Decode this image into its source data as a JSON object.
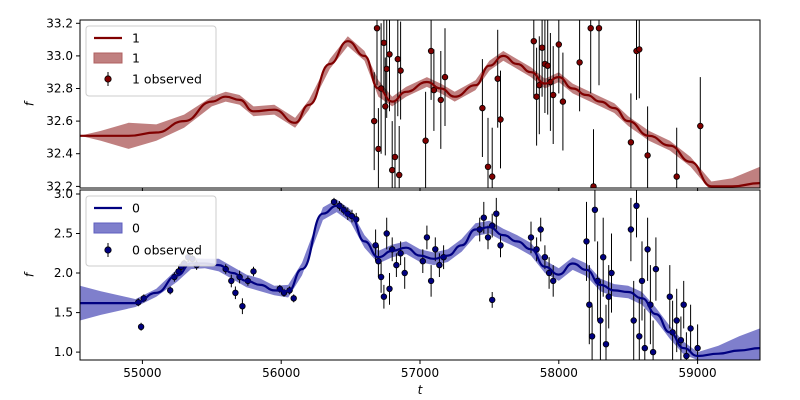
{
  "chart_data": [
    {
      "type": "line",
      "panel": "top",
      "xlabel": "",
      "ylabel": "f",
      "xlim": [
        54550,
        59450
      ],
      "ylim": [
        32.19,
        33.22
      ],
      "yticks": [
        32.2,
        32.4,
        32.6,
        32.8,
        33.0,
        33.2
      ],
      "ytick_labels": [
        "32.2",
        "32.4",
        "32.6",
        "32.8",
        "33.0",
        "33.2"
      ],
      "show_xtick_labels": false,
      "colors": {
        "line": "#800000",
        "band": "#b06060",
        "marker": "#800000"
      },
      "legend": {
        "position": "top-left",
        "entries": [
          {
            "kind": "line",
            "label": "1"
          },
          {
            "kind": "band",
            "label": "1"
          },
          {
            "kind": "errorbar",
            "label": "1 observed"
          }
        ]
      },
      "series": [
        {
          "name": "1",
          "kind": "model",
          "x": [
            54550,
            54700,
            54900,
            55100,
            55300,
            55500,
            55600,
            55700,
            55800,
            55950,
            56100,
            56200,
            56350,
            56480,
            56600,
            56700,
            56800,
            56900,
            57050,
            57150,
            57250,
            57400,
            57500,
            57600,
            57700,
            57800,
            57900,
            58000,
            58100,
            58200,
            58300,
            58400,
            58500,
            58650,
            58800,
            58950,
            59100,
            59250,
            59450
          ],
          "y": [
            32.51,
            32.51,
            32.51,
            32.53,
            32.6,
            32.72,
            32.75,
            32.73,
            32.66,
            32.67,
            32.59,
            32.7,
            32.95,
            33.09,
            33.0,
            32.8,
            32.72,
            32.78,
            32.84,
            32.8,
            32.75,
            32.82,
            32.94,
            33.0,
            32.95,
            32.9,
            32.83,
            32.87,
            32.8,
            32.76,
            32.72,
            32.68,
            32.6,
            32.51,
            32.45,
            32.35,
            32.2,
            32.2,
            32.22
          ],
          "band_halfwidth": [
            0.0,
            0.03,
            0.08,
            0.05,
            0.04,
            0.03,
            0.03,
            0.03,
            0.03,
            0.03,
            0.03,
            0.03,
            0.03,
            0.03,
            0.03,
            0.05,
            0.03,
            0.03,
            0.03,
            0.03,
            0.03,
            0.03,
            0.03,
            0.03,
            0.03,
            0.03,
            0.03,
            0.03,
            0.03,
            0.03,
            0.03,
            0.03,
            0.03,
            0.03,
            0.03,
            0.03,
            0.03,
            0.05,
            0.1
          ]
        },
        {
          "name": "1 observed",
          "kind": "observed",
          "points": [
            [
              56670,
              32.6,
              0.3
            ],
            [
              56690,
              33.17,
              0.35
            ],
            [
              56700,
              32.43,
              0.25
            ],
            [
              56720,
              32.8,
              0.4
            ],
            [
              56740,
              33.08,
              0.3
            ],
            [
              56750,
              32.69,
              0.3
            ],
            [
              56760,
              32.92,
              0.3
            ],
            [
              56780,
              33.01,
              0.35
            ],
            [
              56800,
              32.3,
              0.3
            ],
            [
              56820,
              32.38,
              0.35
            ],
            [
              56840,
              32.98,
              0.35
            ],
            [
              56860,
              32.91,
              0.3
            ],
            [
              56850,
              32.27,
              0.3
            ],
            [
              57040,
              32.48,
              0.3
            ],
            [
              57080,
              33.03,
              0.3
            ],
            [
              57100,
              32.79,
              0.25
            ],
            [
              57150,
              32.73,
              0.3
            ],
            [
              57180,
              32.87,
              0.3
            ],
            [
              57450,
              32.68,
              0.3
            ],
            [
              57490,
              32.32,
              0.3
            ],
            [
              57520,
              32.26,
              0.3
            ],
            [
              57560,
              32.86,
              0.3
            ],
            [
              57580,
              32.61,
              0.3
            ],
            [
              57820,
              33.09,
              0.35
            ],
            [
              57840,
              32.75,
              0.3
            ],
            [
              57860,
              32.82,
              0.3
            ],
            [
              57880,
              33.05,
              0.3
            ],
            [
              57900,
              32.95,
              0.3
            ],
            [
              57920,
              32.94,
              0.3
            ],
            [
              57940,
              32.84,
              0.3
            ],
            [
              57960,
              32.76,
              0.3
            ],
            [
              58000,
              33.07,
              0.3
            ],
            [
              58030,
              32.72,
              0.3
            ],
            [
              58150,
              32.96,
              0.3
            ],
            [
              58230,
              33.17,
              0.4
            ],
            [
              58250,
              32.2,
              0.35
            ],
            [
              58290,
              33.17,
              0.35
            ],
            [
              58520,
              32.47,
              0.3
            ],
            [
              58560,
              33.03,
              0.3
            ],
            [
              58580,
              33.04,
              0.3
            ],
            [
              58640,
              32.39,
              0.3
            ],
            [
              58850,
              32.26,
              0.3
            ],
            [
              59020,
              32.57,
              0.3
            ]
          ]
        }
      ]
    },
    {
      "type": "line",
      "panel": "bottom",
      "xlabel": "t",
      "ylabel": "f",
      "xlim": [
        54550,
        59450
      ],
      "ylim": [
        0.9,
        3.05
      ],
      "xticks": [
        55000,
        56000,
        57000,
        58000,
        59000
      ],
      "xtick_labels": [
        "55000",
        "56000",
        "57000",
        "58000",
        "59000"
      ],
      "yticks": [
        1.0,
        1.5,
        2.0,
        2.5,
        3.0
      ],
      "ytick_labels": [
        "1.0",
        "1.5",
        "2.0",
        "2.5",
        "3.0"
      ],
      "colors": {
        "line": "#000080",
        "band": "#5f5fbf",
        "marker": "#000080"
      },
      "legend": {
        "position": "top-left",
        "entries": [
          {
            "kind": "line",
            "label": "0"
          },
          {
            "kind": "band",
            "label": "0"
          },
          {
            "kind": "errorbar",
            "label": "0 observed"
          }
        ]
      },
      "series": [
        {
          "name": "0",
          "kind": "model",
          "x": [
            54550,
            54700,
            54950,
            55100,
            55250,
            55350,
            55450,
            55550,
            55650,
            55750,
            55850,
            55950,
            56050,
            56150,
            56300,
            56400,
            56500,
            56600,
            56700,
            56800,
            56900,
            57000,
            57100,
            57200,
            57300,
            57400,
            57500,
            57600,
            57700,
            57800,
            57900,
            58000,
            58100,
            58200,
            58300,
            58400,
            58500,
            58600,
            58700,
            58800,
            58900,
            59000,
            59150,
            59300,
            59450
          ],
          "y": [
            1.62,
            1.62,
            1.62,
            1.75,
            1.97,
            2.12,
            2.12,
            2.1,
            2.0,
            1.9,
            1.85,
            1.78,
            1.77,
            2.05,
            2.75,
            2.85,
            2.72,
            2.4,
            2.2,
            2.28,
            2.32,
            2.22,
            2.18,
            2.22,
            2.35,
            2.55,
            2.58,
            2.48,
            2.4,
            2.3,
            2.08,
            1.98,
            2.12,
            2.04,
            1.85,
            1.78,
            1.76,
            1.68,
            1.48,
            1.25,
            1.05,
            0.95,
            0.98,
            1.02,
            1.05
          ],
          "band_halfwidth": [
            0.22,
            0.15,
            0.05,
            0.05,
            0.08,
            0.07,
            0.06,
            0.08,
            0.08,
            0.08,
            0.08,
            0.06,
            0.08,
            0.08,
            0.08,
            0.08,
            0.08,
            0.08,
            0.08,
            0.08,
            0.08,
            0.08,
            0.08,
            0.08,
            0.08,
            0.08,
            0.08,
            0.08,
            0.08,
            0.08,
            0.08,
            0.08,
            0.08,
            0.08,
            0.08,
            0.08,
            0.08,
            0.08,
            0.08,
            0.08,
            0.08,
            0.05,
            0.1,
            0.18,
            0.25
          ]
        },
        {
          "name": "0 observed",
          "kind": "observed",
          "points": [
            [
              54970,
              1.63,
              0.05
            ],
            [
              54990,
              1.32,
              0.05
            ],
            [
              55010,
              1.68,
              0.05
            ],
            [
              55200,
              1.78,
              0.05
            ],
            [
              55230,
              1.95,
              0.06
            ],
            [
              55260,
              2.02,
              0.06
            ],
            [
              55280,
              2.08,
              0.05
            ],
            [
              55300,
              2.12,
              0.05
            ],
            [
              55330,
              2.2,
              0.06
            ],
            [
              55360,
              2.18,
              0.05
            ],
            [
              55390,
              2.1,
              0.06
            ],
            [
              55600,
              2.05,
              0.06
            ],
            [
              55640,
              1.9,
              0.08
            ],
            [
              55670,
              1.75,
              0.08
            ],
            [
              55700,
              1.95,
              0.08
            ],
            [
              55720,
              1.58,
              0.1
            ],
            [
              55760,
              1.9,
              0.06
            ],
            [
              55800,
              2.02,
              0.06
            ],
            [
              55990,
              1.8,
              0.05
            ],
            [
              56020,
              1.75,
              0.05
            ],
            [
              56060,
              1.78,
              0.05
            ],
            [
              56090,
              1.68,
              0.05
            ],
            [
              56380,
              2.9,
              0.05
            ],
            [
              56420,
              2.85,
              0.06
            ],
            [
              56450,
              2.8,
              0.06
            ],
            [
              56480,
              2.75,
              0.08
            ],
            [
              56510,
              2.72,
              0.08
            ],
            [
              56540,
              2.68,
              0.08
            ],
            [
              56680,
              2.35,
              0.2
            ],
            [
              56700,
              2.15,
              0.2
            ],
            [
              56720,
              1.95,
              0.2
            ],
            [
              56740,
              1.7,
              0.15
            ],
            [
              56760,
              2.5,
              0.2
            ],
            [
              56780,
              1.8,
              0.2
            ],
            [
              56800,
              2.3,
              0.15
            ],
            [
              56830,
              2.1,
              0.15
            ],
            [
              56860,
              2.25,
              0.15
            ],
            [
              56890,
              2.0,
              0.2
            ],
            [
              57020,
              2.15,
              0.15
            ],
            [
              57050,
              2.45,
              0.15
            ],
            [
              57080,
              1.9,
              0.2
            ],
            [
              57110,
              2.3,
              0.15
            ],
            [
              57140,
              2.1,
              0.15
            ],
            [
              57170,
              2.2,
              0.15
            ],
            [
              57430,
              2.55,
              0.15
            ],
            [
              57460,
              2.7,
              0.2
            ],
            [
              57490,
              2.45,
              0.15
            ],
            [
              57520,
              2.6,
              0.15
            ],
            [
              57550,
              2.75,
              0.2
            ],
            [
              57520,
              1.66,
              0.1
            ],
            [
              57580,
              2.35,
              0.15
            ],
            [
              57800,
              2.45,
              0.2
            ],
            [
              57840,
              2.3,
              0.15
            ],
            [
              57870,
              2.55,
              0.15
            ],
            [
              57900,
              2.2,
              0.15
            ],
            [
              57930,
              2.0,
              0.2
            ],
            [
              57960,
              1.9,
              0.2
            ],
            [
              58200,
              2.4,
              0.5
            ],
            [
              58220,
              1.6,
              0.5
            ],
            [
              58240,
              1.2,
              0.4
            ],
            [
              58260,
              2.8,
              0.4
            ],
            [
              58280,
              1.9,
              0.5
            ],
            [
              58300,
              1.4,
              0.5
            ],
            [
              58320,
              2.2,
              0.5
            ],
            [
              58340,
              1.1,
              0.5
            ],
            [
              58360,
              1.7,
              0.4
            ],
            [
              58380,
              2.0,
              0.5
            ],
            [
              58520,
              2.55,
              0.4
            ],
            [
              58540,
              1.4,
              0.5
            ],
            [
              58560,
              2.85,
              0.4
            ],
            [
              58580,
              1.2,
              0.5
            ],
            [
              58600,
              1.9,
              0.5
            ],
            [
              58620,
              1.05,
              0.5
            ],
            [
              58640,
              2.3,
              0.4
            ],
            [
              58660,
              1.6,
              0.5
            ],
            [
              58680,
              1.0,
              0.4
            ],
            [
              58700,
              2.05,
              0.4
            ],
            [
              58800,
              1.7,
              0.4
            ],
            [
              58820,
              1.25,
              0.4
            ],
            [
              58850,
              1.4,
              0.4
            ],
            [
              58880,
              1.15,
              0.3
            ],
            [
              58900,
              1.6,
              0.3
            ],
            [
              58920,
              0.95,
              0.3
            ],
            [
              58950,
              1.3,
              0.3
            ],
            [
              59000,
              1.05,
              0.3
            ]
          ]
        }
      ]
    }
  ]
}
